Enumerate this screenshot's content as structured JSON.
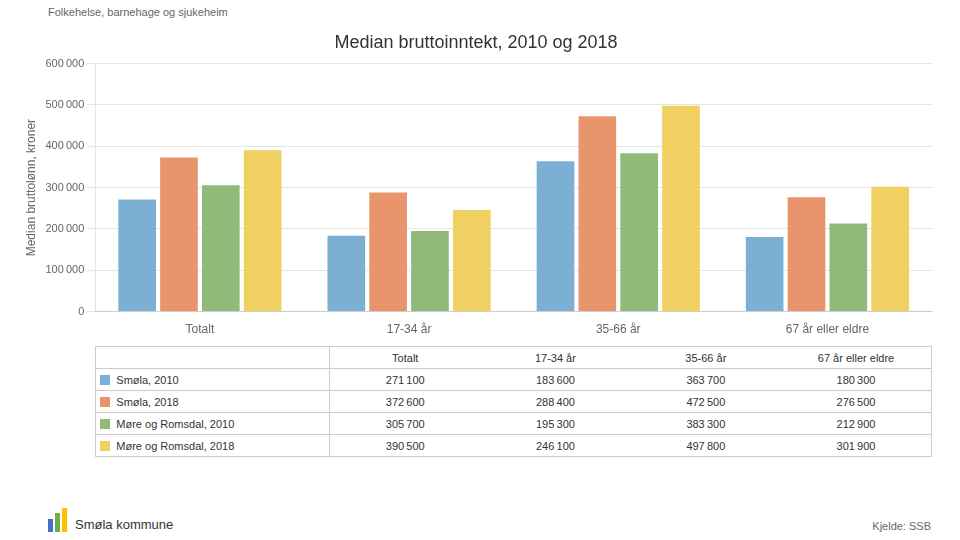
{
  "chart_data": {
    "type": "bar",
    "title": "Median bruttoinntekt, 2010 og 2018",
    "subtitle": "Folkehelse, barnehage og sjukeheim",
    "y_label": "Median bruttolønn, kroner",
    "source": "Kjelde: SSB",
    "annotations": [
      "Smøla kommune"
    ],
    "categories": [
      "Totalt",
      "17-34 år",
      "35-66 år",
      "67 år eller eldre"
    ],
    "series": [
      {
        "name": "Smøla, 2010",
        "color": "#7bafd4",
        "values": [
          271100,
          183600,
          363700,
          180300
        ],
        "value_labels": [
          "271 100",
          "183 600",
          "363 700",
          "180 300"
        ]
      },
      {
        "name": "Smøla, 2018",
        "color": "#e8956d",
        "values": [
          372600,
          288400,
          472500,
          276500
        ],
        "value_labels": [
          "372 600",
          "288 400",
          "472 500",
          "276 500"
        ]
      },
      {
        "name": "Møre og Romsdal, 2010",
        "color": "#8fba7a",
        "values": [
          305700,
          195300,
          383300,
          212900
        ],
        "value_labels": [
          "305 700",
          "195 300",
          "383 300",
          "212 900"
        ]
      },
      {
        "name": "Møre og Romsdal, 2018",
        "color": "#f0d060",
        "values": [
          390500,
          246100,
          497800,
          301900
        ],
        "value_labels": [
          "390 500",
          "246 100",
          "497 800",
          "301 900"
        ]
      }
    ],
    "ylim": [
      0,
      600000
    ],
    "yticks": [
      0,
      {
        "value": 100000,
        "label": "100 000"
      },
      {
        "value": 200000,
        "label": "200 000"
      },
      {
        "value": 300000,
        "label": "300 000"
      },
      {
        "value": 400000,
        "label": "400 000"
      },
      {
        "value": 500000,
        "label": "500 000"
      },
      {
        "value": 600000,
        "label": "600 000"
      }
    ],
    "grid": true
  }
}
